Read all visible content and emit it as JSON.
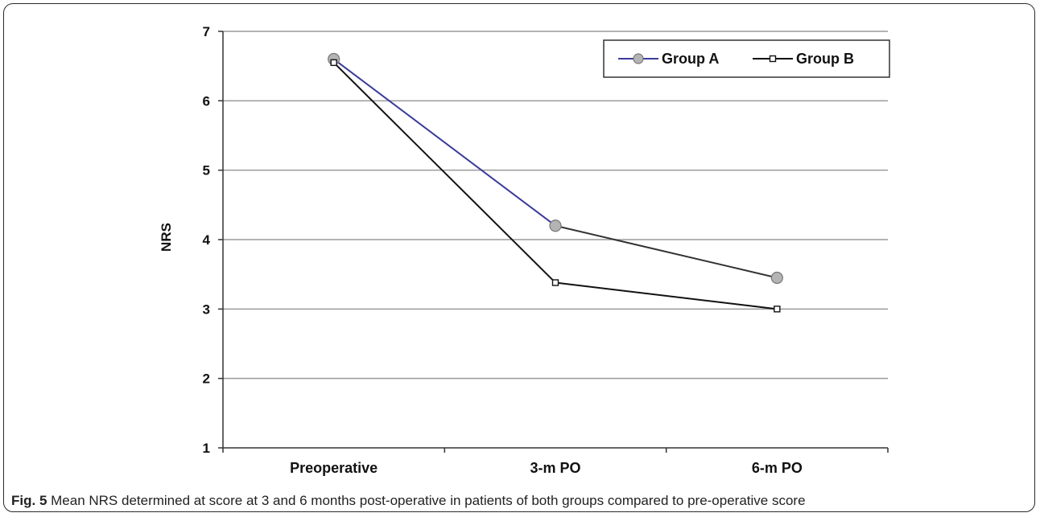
{
  "chart_data": {
    "type": "line",
    "categories": [
      "Preoperative",
      "3-m PO",
      "6-m PO"
    ],
    "series": [
      {
        "name": "Group A",
        "values": [
          6.6,
          4.2,
          3.45
        ],
        "line_color": "#3a3a9a",
        "marker": "circle",
        "marker_fill": "#b4b4b4"
      },
      {
        "name": "Group B",
        "values": [
          6.55,
          3.38,
          3.0
        ],
        "line_color": "#111111",
        "marker": "square",
        "marker_fill": "#ffffff"
      }
    ],
    "title": "",
    "xlabel": "",
    "ylabel": "NRS",
    "ylim": [
      1,
      7
    ],
    "yticks": [
      "1",
      "2",
      "3",
      "4",
      "5",
      "6",
      "7"
    ],
    "grid": true,
    "legend_position": "top-right"
  },
  "caption": {
    "label": "Fig. 5",
    "text": " Mean NRS determined at score at 3 and 6 months post-operative in patients of both groups compared to pre-operative score"
  }
}
